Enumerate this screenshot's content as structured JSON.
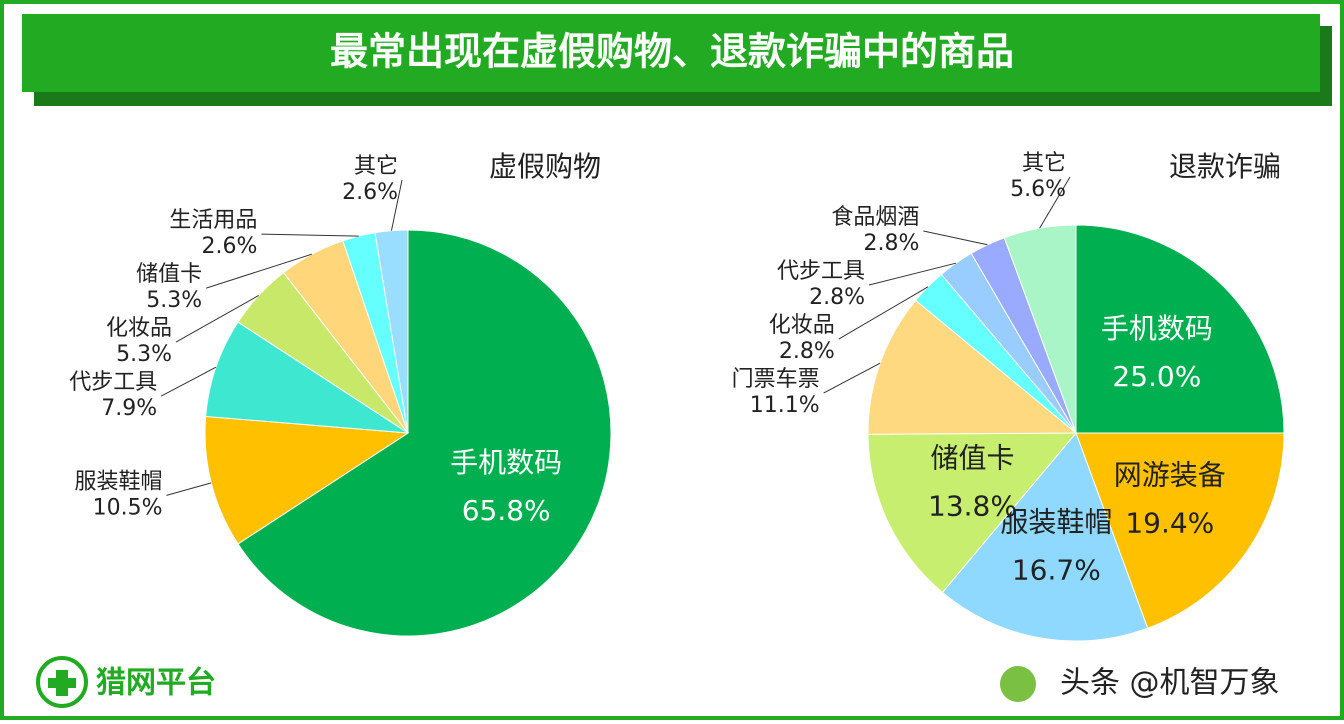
{
  "title": "最常出现在虚假购物、退款诈骗中的商品",
  "footer": {
    "brand": "猎网平台",
    "watermark": "头条 @机智万象"
  },
  "chart_data": [
    {
      "type": "pie",
      "title": "虚假购物",
      "categories": [
        "手机数码",
        "服装鞋帽",
        "代步工具",
        "化妆品",
        "储值卡",
        "生活用品",
        "其它"
      ],
      "values": [
        65.8,
        10.5,
        7.9,
        5.3,
        5.3,
        2.6,
        2.6
      ],
      "value_labels": [
        "65.8%",
        "10.5%",
        "7.9%",
        "5.3%",
        "5.3%",
        "2.6%",
        "2.6%"
      ],
      "colors": [
        "#00b050",
        "#ffc000",
        "#3ee8d0",
        "#c8e86a",
        "#ffd77a",
        "#66ffff",
        "#99ddff"
      ]
    },
    {
      "type": "pie",
      "title": "退款诈骗",
      "categories": [
        "手机数码",
        "网游装备",
        "服装鞋帽",
        "储值卡",
        "门票车票",
        "化妆品",
        "代步工具",
        "食品烟酒",
        "其它"
      ],
      "values": [
        25.0,
        19.4,
        16.7,
        13.8,
        11.1,
        2.8,
        2.8,
        2.8,
        5.6
      ],
      "value_labels": [
        "25.0%",
        "19.4%",
        "16.7%",
        "13.8%",
        "11.1%",
        "2.8%",
        "2.8%",
        "2.8%",
        "5.6%"
      ],
      "colors": [
        "#00b050",
        "#ffc000",
        "#8fd8ff",
        "#c8ee70",
        "#ffd980",
        "#66ffff",
        "#99ccff",
        "#99aaff",
        "#aaf5c8"
      ]
    }
  ]
}
